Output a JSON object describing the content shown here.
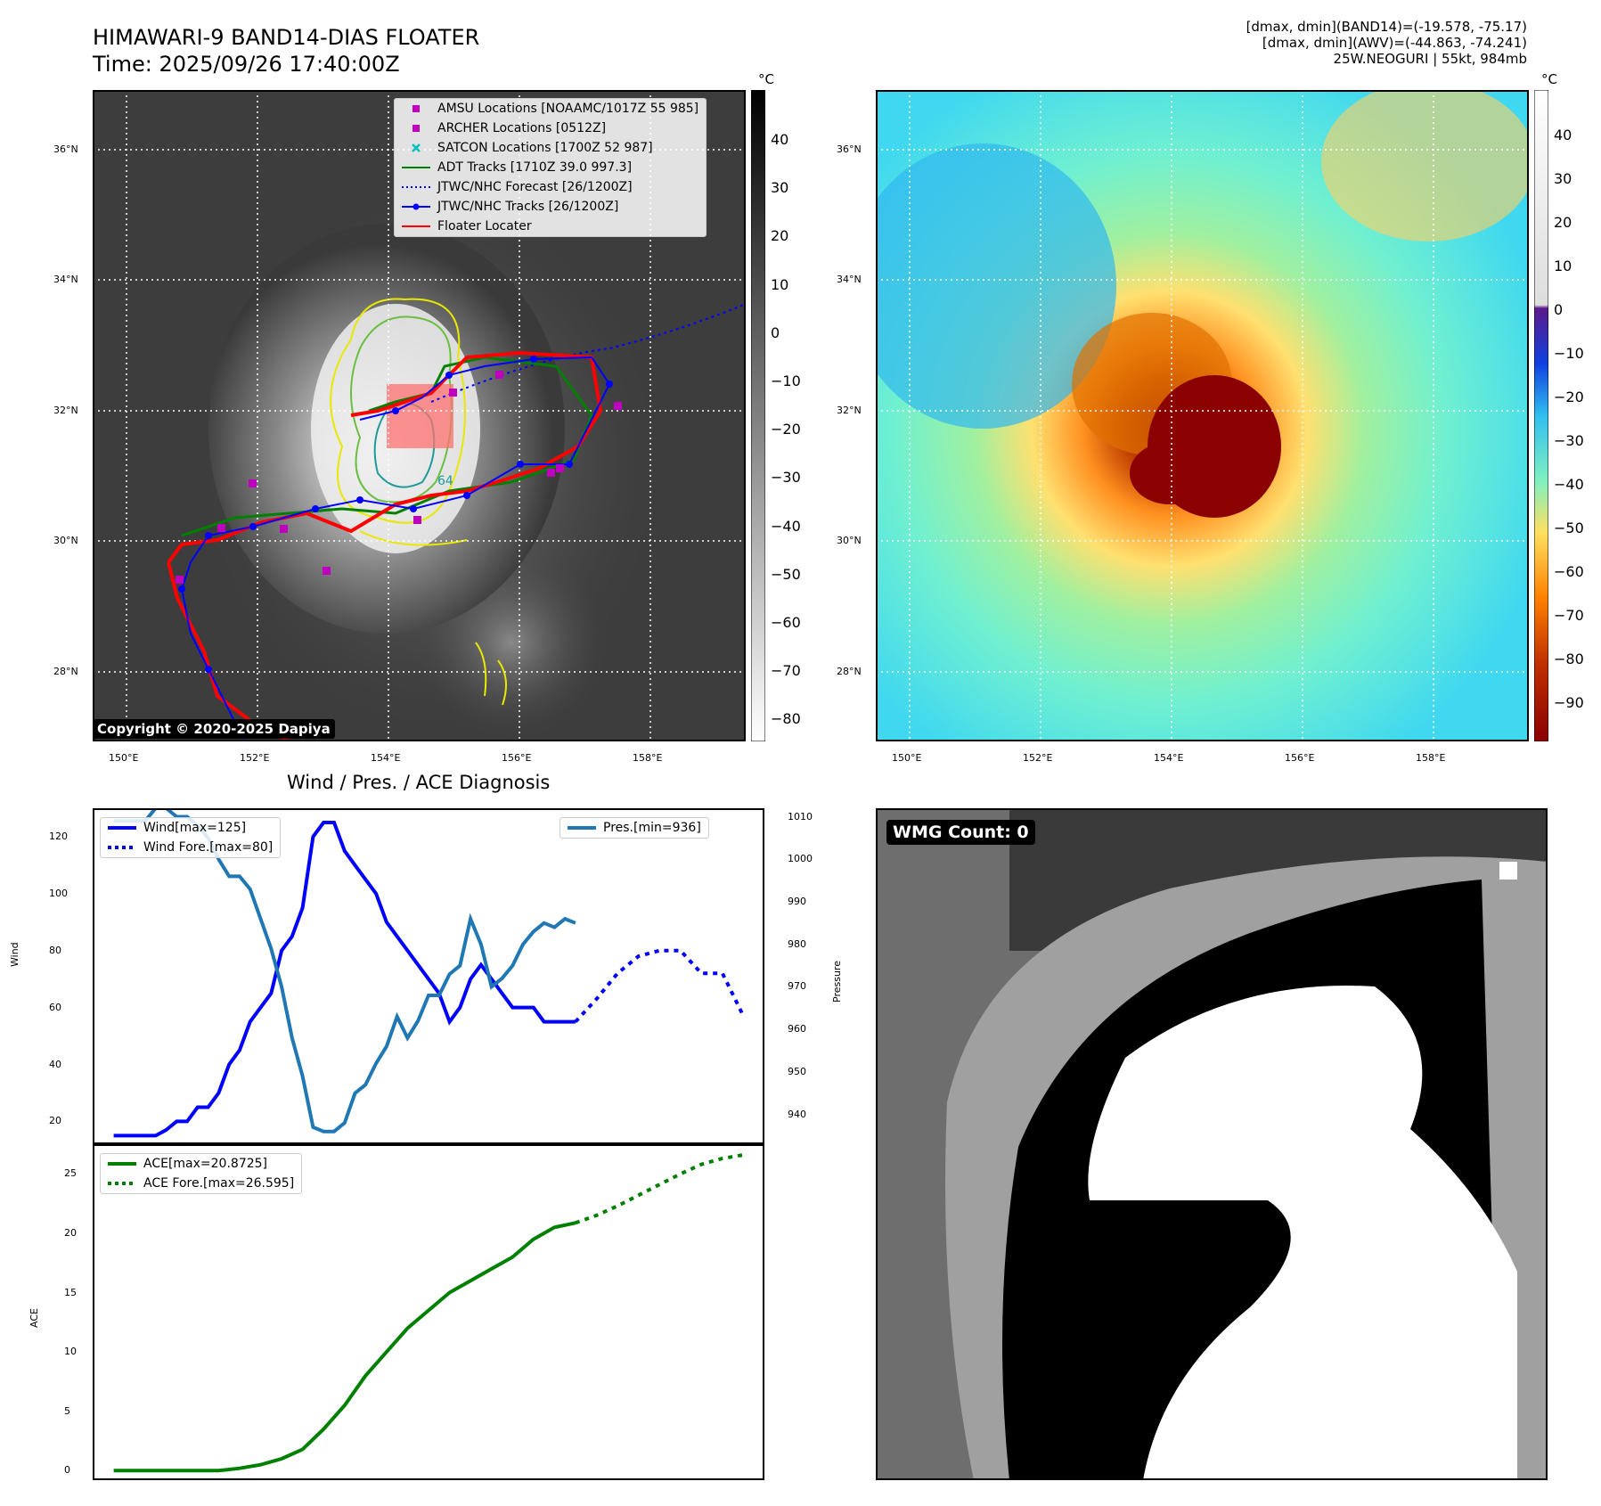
{
  "header": {
    "title_line1": "HIMAWARI-9 BAND14-DIAS FLOATER",
    "title_line2": "Time: 2025/09/26 17:40:00Z",
    "meta_line1": "[dmax, dmin](BAND14)=(-19.578, -75.17)",
    "meta_line2": "[dmax, dmin](AWV)=(-44.863, -74.241)",
    "meta_line3": "25W.NEOGURI | 55kt, 984mb"
  },
  "maps": {
    "lat_ticks": [
      "36°N",
      "34°N",
      "32°N",
      "30°N",
      "28°N"
    ],
    "lon_ticks": [
      "150°E",
      "152°E",
      "154°E",
      "156°E",
      "158°E"
    ],
    "copyright": "Copyright © 2020-2025 Dapiya",
    "contour_label": "64",
    "legend": [
      {
        "label": "AMSU Locations [NOAAMC/1017Z 55 985]",
        "color": "#bf00bf",
        "kind": "square"
      },
      {
        "label": "ARCHER Locations [0512Z]",
        "color": "#bf00bf",
        "kind": "square"
      },
      {
        "label": "SATCON Locations [1700Z 52 987]",
        "color": "#00bfbf",
        "kind": "cross"
      },
      {
        "label": "ADT Tracks [1710Z 39.0 997.3]",
        "color": "#008000",
        "kind": "line"
      },
      {
        "label": "JTWC/NHC Forecast [26/1200Z]",
        "color": "#0000ff",
        "kind": "dotted"
      },
      {
        "label": "JTWC/NHC Tracks [26/1200Z]",
        "color": "#0000ff",
        "kind": "linedot"
      },
      {
        "label": "Floater Locater",
        "color": "#ff0000",
        "kind": "line"
      }
    ],
    "ir_colorbar": {
      "unit": "°C",
      "ticks": [
        "40",
        "30",
        "20",
        "10",
        "0",
        "−10",
        "−20",
        "−30",
        "−40",
        "−50",
        "−60",
        "−70",
        "−80"
      ]
    },
    "wv_colorbar": {
      "unit": "°C",
      "ticks": [
        "40",
        "30",
        "20",
        "10",
        "0",
        "−10",
        "−20",
        "−30",
        "−40",
        "−50",
        "−60",
        "−70",
        "−80",
        "−90"
      ]
    }
  },
  "wmg": {
    "label": "WMG Count: 0"
  },
  "chart_data": [
    {
      "type": "line",
      "title": "Wind / Pres. / ACE Diagnosis",
      "ylabel": "Wind",
      "y2label": "Pressure",
      "ylim": [
        12,
        130
      ],
      "y2lim": [
        933,
        1012
      ],
      "yticks": [
        "20",
        "40",
        "60",
        "80",
        "100",
        "120"
      ],
      "y2ticks": [
        "940",
        "950",
        "960",
        "970",
        "980",
        "990",
        "1000",
        "1010"
      ],
      "series": [
        {
          "name": "Wind[max=125]",
          "axis": "left",
          "color": "#0000ff",
          "style": "solid",
          "x": [
            0,
            1,
            2,
            3,
            4,
            5,
            6,
            7,
            8,
            9,
            10,
            11,
            12,
            13,
            14,
            15,
            16,
            17,
            18,
            19,
            20,
            21,
            22,
            23,
            24,
            25,
            26,
            27,
            28,
            29,
            30,
            31,
            32,
            33,
            34,
            35,
            36,
            37,
            38,
            39,
            40,
            41,
            42,
            43,
            44
          ],
          "values": [
            15,
            15,
            15,
            15,
            15,
            17,
            20,
            20,
            25,
            25,
            30,
            40,
            45,
            55,
            60,
            65,
            80,
            85,
            95,
            120,
            125,
            125,
            115,
            110,
            105,
            100,
            90,
            85,
            80,
            75,
            70,
            65,
            55,
            60,
            70,
            75,
            70,
            65,
            60,
            60,
            60,
            55,
            55,
            55,
            55
          ]
        },
        {
          "name": "Wind Fore.[max=80]",
          "axis": "left",
          "color": "#0000ff",
          "style": "dotted",
          "x": [
            44,
            46,
            48,
            50,
            52,
            54,
            56,
            58,
            60
          ],
          "values": [
            55,
            63,
            72,
            78,
            80,
            80,
            72,
            72,
            57
          ]
        },
        {
          "name": "Pres.[min=936]",
          "axis": "right",
          "color": "#1f77b4",
          "style": "solid",
          "x": [
            0,
            1,
            2,
            3,
            4,
            5,
            6,
            7,
            8,
            9,
            10,
            11,
            12,
            13,
            14,
            15,
            16,
            17,
            18,
            19,
            20,
            21,
            22,
            23,
            24,
            25,
            26,
            27,
            28,
            29,
            30,
            31,
            32,
            33,
            34,
            35,
            36,
            37,
            38,
            39,
            40,
            41,
            42,
            43,
            44
          ],
          "values": [
            1009,
            1009,
            1009,
            1009,
            1012,
            1012,
            1010,
            1010,
            1008,
            1005,
            1000,
            996,
            996,
            993,
            986,
            979,
            970,
            958,
            949,
            937,
            936,
            936,
            938,
            945,
            947,
            952,
            956,
            963,
            958,
            962,
            968,
            968,
            973,
            975,
            986,
            980,
            970,
            972,
            975,
            980,
            983,
            985,
            984,
            986,
            985
          ]
        },
        {
          "name": "ACE[max=20.8725]",
          "axis": "ace",
          "color": "#008000",
          "style": "solid",
          "x": [
            0,
            2,
            4,
            6,
            8,
            10,
            12,
            14,
            16,
            18,
            20,
            22,
            24,
            26,
            28,
            30,
            32,
            34,
            36,
            38,
            40,
            42,
            44
          ],
          "values": [
            0,
            0,
            0,
            0,
            0,
            0,
            0.2,
            0.5,
            1,
            1.8,
            3.5,
            5.5,
            8,
            10,
            12,
            13.5,
            15,
            16,
            17,
            18,
            19.5,
            20.5,
            20.87
          ]
        },
        {
          "name": "ACE Fore.[max=26.595]",
          "axis": "ace",
          "color": "#008000",
          "style": "dotted",
          "x": [
            44,
            46,
            48,
            50,
            52,
            54,
            56,
            58,
            60
          ],
          "values": [
            20.87,
            21.5,
            22.3,
            23.2,
            24.1,
            25,
            25.8,
            26.3,
            26.6
          ]
        }
      ],
      "ace_ylabel": "ACE",
      "ace_ylim": [
        -0.8,
        27.5
      ],
      "ace_yticks": [
        "0",
        "5",
        "10",
        "15",
        "20",
        "25"
      ],
      "ace_ytick_values": [
        0,
        5,
        10,
        15,
        20,
        25
      ],
      "ytick_values": [
        20,
        40,
        60,
        80,
        100,
        120
      ],
      "y2tick_values": [
        940,
        950,
        960,
        970,
        980,
        990,
        1000,
        1010
      ],
      "xlim": [
        -2,
        62
      ]
    }
  ]
}
